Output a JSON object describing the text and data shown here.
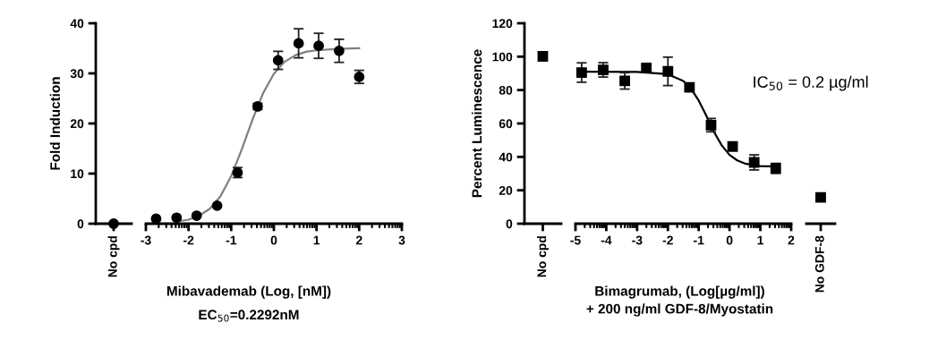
{
  "chart_data": [
    {
      "type": "scatter",
      "categories": [
        "No cpd"
      ],
      "series": [
        {
          "color": "#000000",
          "marker": "circle",
          "values": [
            0
          ]
        }
      ],
      "ylim": [
        0,
        40
      ],
      "yticks": [
        0,
        10,
        20,
        30,
        40
      ],
      "ylabel": "Fold Induction"
    },
    {
      "type": "scatter",
      "x": [
        -2.76,
        -2.28,
        -1.81,
        -1.33,
        -0.85,
        -0.38,
        0.1,
        0.58,
        1.05,
        1.53,
        2.0
      ],
      "series": [
        {
          "color": "#000000",
          "marker": "circle",
          "values": [
            1.0,
            1.2,
            1.6,
            3.6,
            10.2,
            23.4,
            32.6,
            36.0,
            35.5,
            34.5,
            29.3
          ],
          "errors": [
            null,
            null,
            null,
            null,
            1.0,
            0.6,
            1.8,
            2.9,
            2.5,
            2.3,
            1.3
          ]
        },
        {
          "type": "line",
          "color": "#808080",
          "marker": "none",
          "x": [
            -2.3,
            -2.0,
            -1.75,
            -1.5,
            -1.25,
            -1.0,
            -0.75,
            -0.5,
            -0.25,
            0,
            0.25,
            0.5,
            0.75,
            1.0,
            1.5,
            2.0
          ],
          "values": [
            0.4,
            0.8,
            1.6,
            3.0,
            5.5,
            9.5,
            14.9,
            20.8,
            26.1,
            29.9,
            32.3,
            33.6,
            34.3,
            34.6,
            34.9,
            35.0
          ]
        }
      ],
      "xlim": [
        -3,
        3
      ],
      "xticks": [
        -3,
        -2,
        -1,
        0,
        1,
        2,
        3
      ],
      "ylim": [
        0,
        40
      ],
      "tick_labels": "x",
      "xlabel": "Mibavademab (Log, [nM])",
      "annotations": [
        "EC$_{50}$=0.2292nM"
      ]
    },
    {
      "type": "scatter",
      "categories": [
        "No cpd"
      ],
      "series": [
        {
          "color": "#000000",
          "marker": "square",
          "values": [
            100.2
          ],
          "errors": [
            2.7
          ]
        }
      ],
      "ylim": [
        0,
        120
      ],
      "yticks": [
        0,
        20,
        40,
        60,
        80,
        100,
        120
      ],
      "ylabel": "Percent Luminescence"
    },
    {
      "type": "scatter",
      "x": [
        -4.8,
        -4.1,
        -3.4,
        -2.7,
        -2.0,
        -1.3,
        -0.6,
        0.1,
        0.8,
        1.5
      ],
      "series": [
        {
          "color": "#000000",
          "marker": "square",
          "values": [
            90.5,
            92.1,
            85.5,
            93.2,
            91.2,
            81.6,
            59.0,
            46.2,
            36.7,
            33.1
          ],
          "errors": [
            5.8,
            4.3,
            4.9,
            1.5,
            8.5,
            1.0,
            4.0,
            1.5,
            4.5,
            3.0
          ]
        },
        {
          "type": "line",
          "color": "#000000",
          "marker": "none",
          "x": [
            -4.8,
            -3.0,
            -2.0,
            -1.5,
            -1.25,
            -1.0,
            -0.75,
            -0.5,
            -0.25,
            0,
            0.25,
            0.5,
            1.0,
            1.5
          ],
          "values": [
            91.0,
            90.9,
            89.5,
            85.4,
            80.8,
            73.7,
            64.5,
            54.8,
            46.8,
            41.2,
            37.9,
            36.0,
            34.5,
            34.2
          ]
        }
      ],
      "xlim": [
        -5,
        2
      ],
      "xticks": [
        -5,
        -4,
        -3,
        -2,
        -1,
        0,
        1,
        2
      ],
      "ylim": [
        0,
        120
      ],
      "tick_labels": "x",
      "xlabel": "Bimagrumab, (Log[µg/ml])\n+ 200 ng/ml GDF-8/Myostatin",
      "annotations": [
        "IC$_{50}$ = 0.2 µg/ml"
      ]
    },
    {
      "type": "scatter",
      "categories": [
        "No GDF-8"
      ],
      "series": [
        {
          "color": "#000000",
          "marker": "square",
          "values": [
            15.7
          ]
        }
      ],
      "ylim": [
        0,
        120
      ],
      "tick_labels": "x"
    }
  ]
}
